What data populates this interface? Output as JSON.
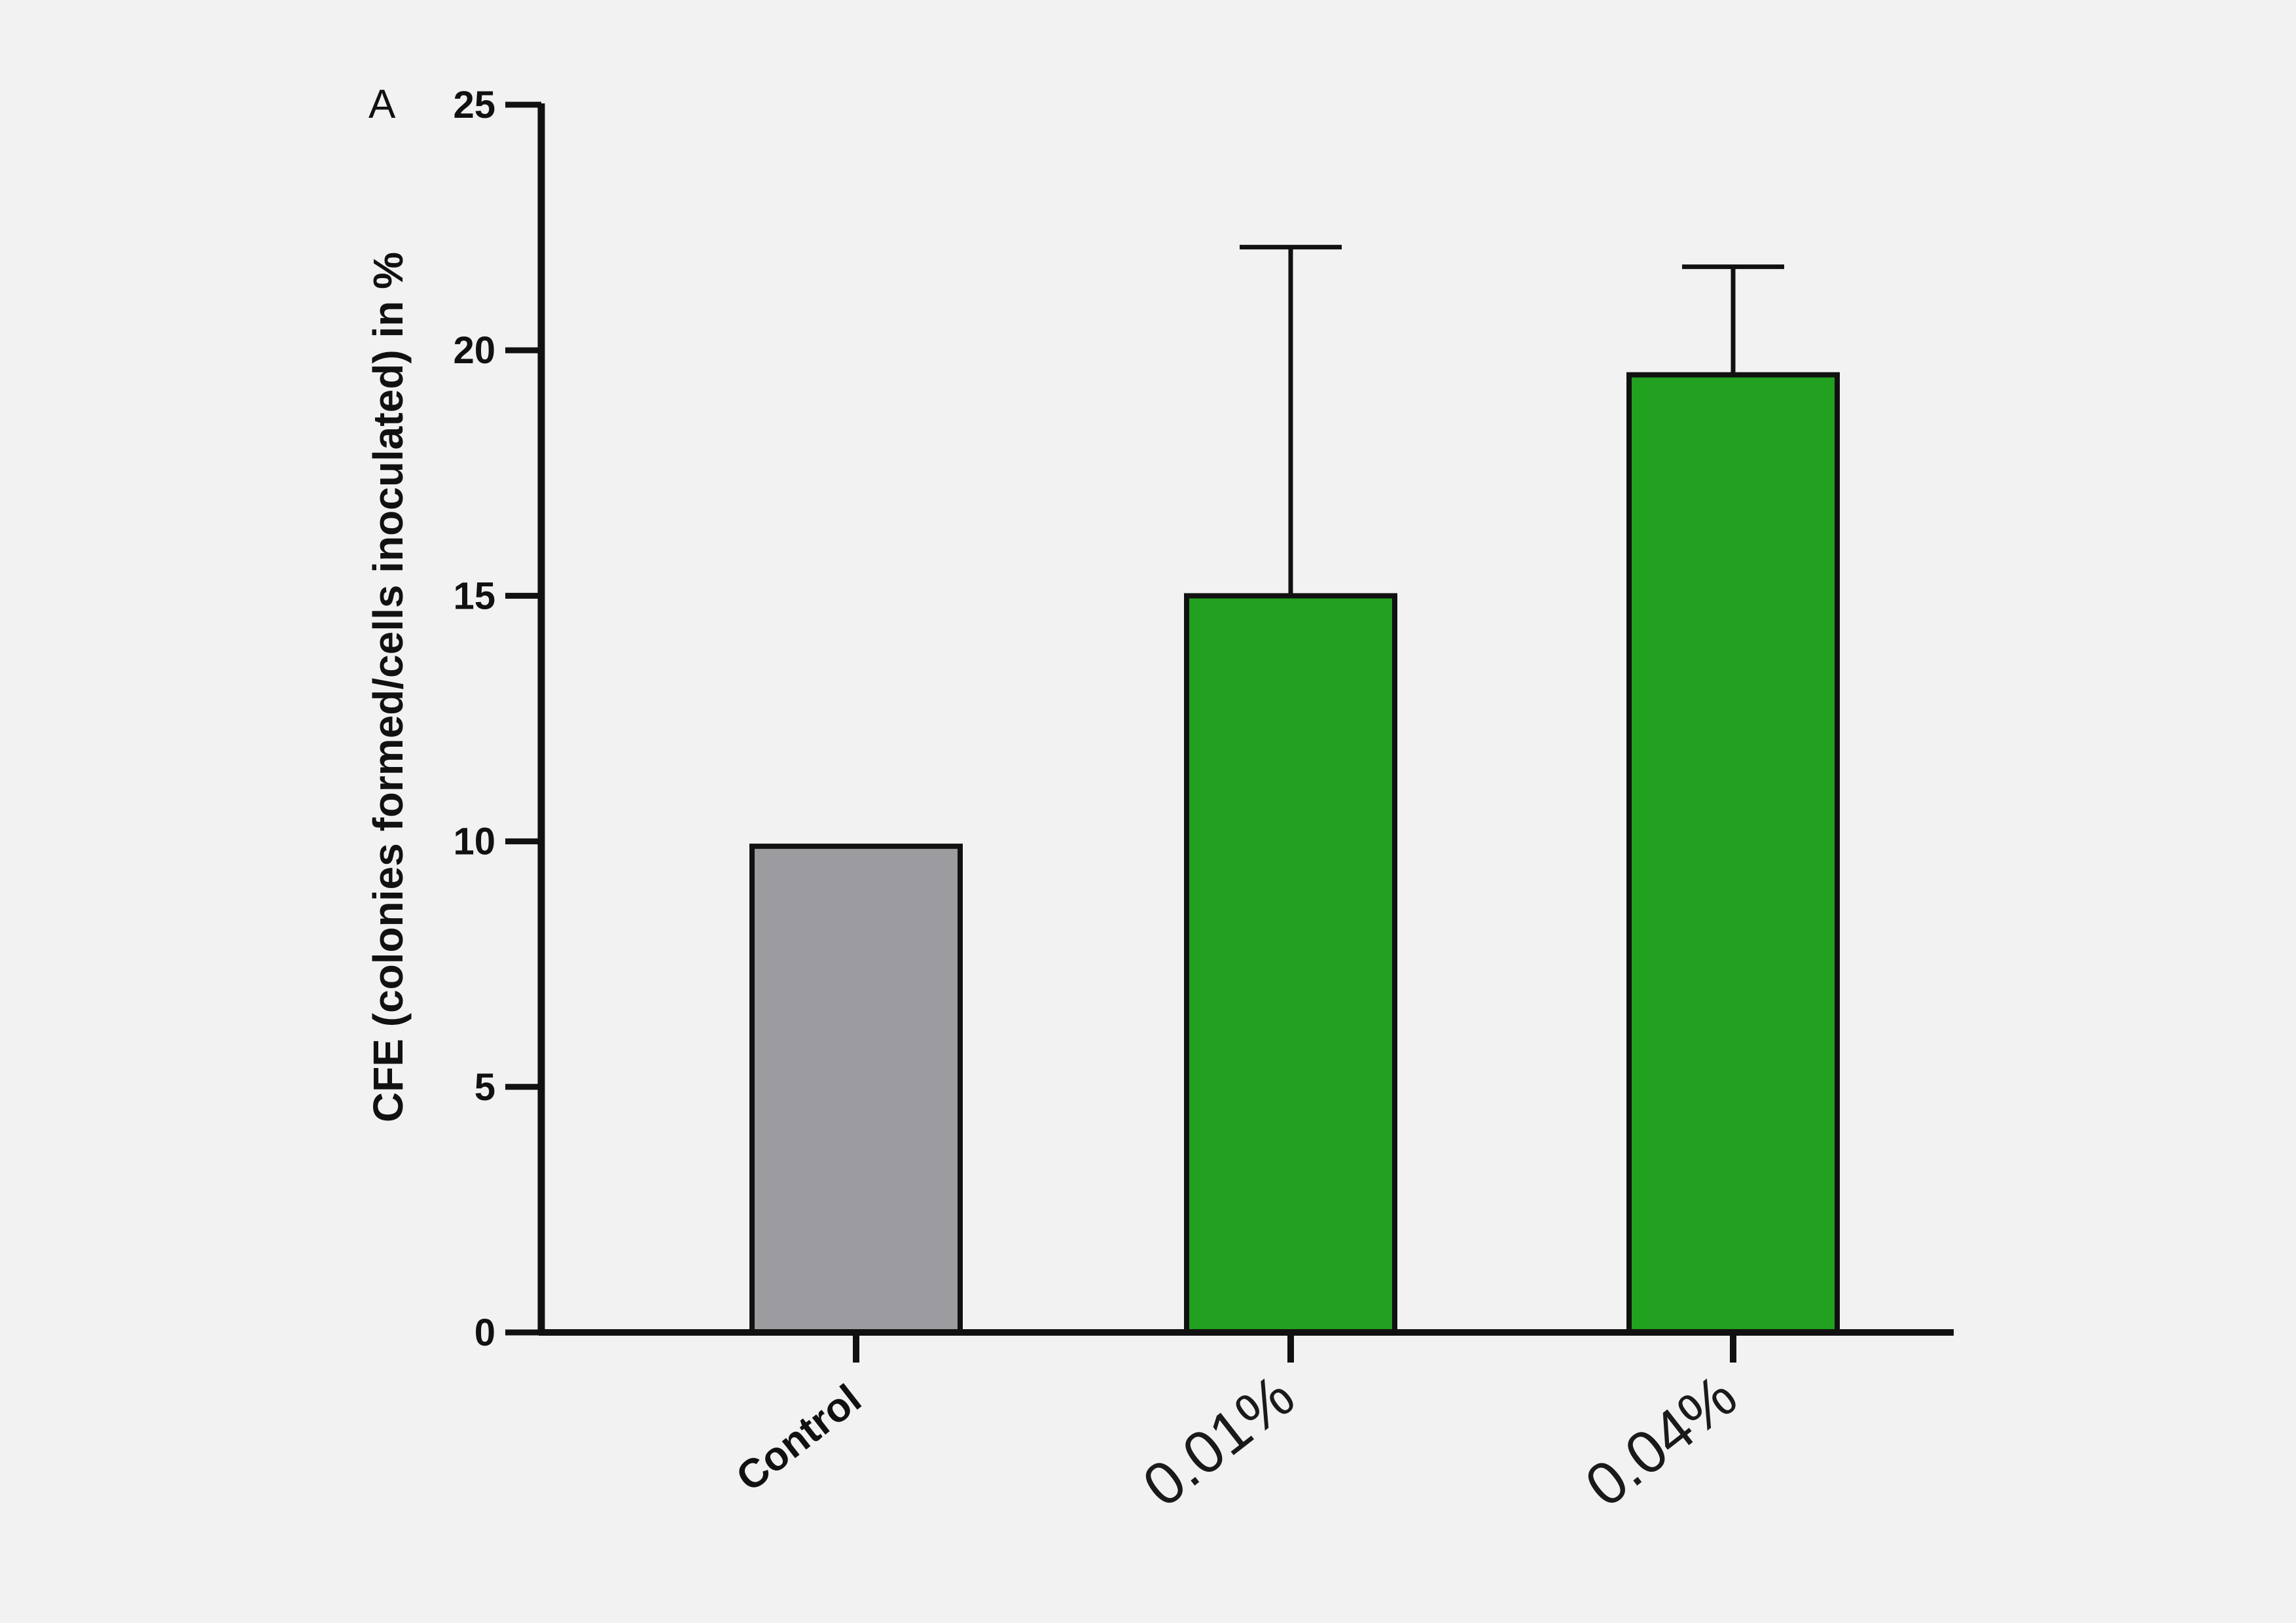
{
  "panel_label": "A",
  "chart_data": {
    "type": "bar",
    "categories": [
      "Control",
      "0.01%",
      "0.04%"
    ],
    "values": [
      9.9,
      15.0,
      19.5
    ],
    "error_upper": [
      null,
      22.1,
      21.7
    ],
    "colors": [
      "#9c9ca0",
      "#22a020",
      "#22a020"
    ],
    "ylabel": "CFE (colonies formed/cells inoculated) in %",
    "xlabel": "",
    "ylim": [
      0,
      25
    ],
    "yticks": [
      "0",
      "5",
      "10",
      "15",
      "20",
      "25"
    ],
    "grid": false
  }
}
